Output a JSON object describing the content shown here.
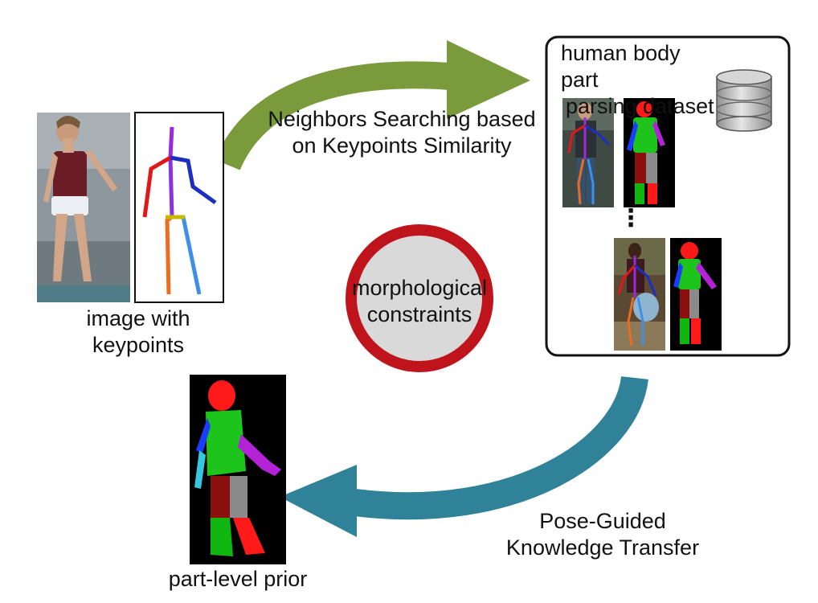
{
  "input": {
    "caption_line1": "image with",
    "caption_line2": "keypoints"
  },
  "search_step": {
    "line1": "Neighbors Searching based",
    "line2": "on Keypoints Similarity",
    "arrow_color": "#7a9a3c"
  },
  "dataset": {
    "title_line1": "human body part",
    "title_line2": "parsing dataset",
    "ellipsis": "⋮",
    "icon": "database-icon"
  },
  "center": {
    "line1": "morphological",
    "line2": "constraints",
    "ring_color": "#c0141c",
    "fill_color": "#d9d9d9"
  },
  "transfer_step": {
    "line1": "Pose-Guided",
    "line2": "Knowledge Transfer",
    "arrow_color": "#2f8298"
  },
  "output": {
    "caption": "part-level prior"
  },
  "part_colors": {
    "head": "#ff1a1a",
    "torso": "#1cc41c",
    "left_arm": "#1a3dff",
    "right_arm": "#b322d6",
    "left_leg": "#8b0f0f",
    "right_leg": "#8a8a8a",
    "left_foot": "#11b611",
    "right_foot": "#ff1a1a"
  }
}
